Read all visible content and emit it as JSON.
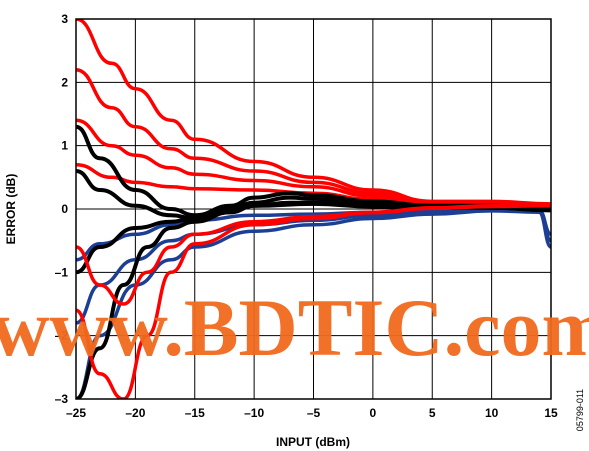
{
  "watermark": "www.BDTIC.com",
  "figure_id": "05799-011",
  "chart_data": {
    "type": "line",
    "title": "",
    "xlabel": "INPUT (dBm)",
    "ylabel": "ERROR (dB)",
    "xlim": [
      -25,
      15
    ],
    "ylim": [
      -3,
      3
    ],
    "xticks": [
      -25,
      -20,
      -15,
      -10,
      -5,
      0,
      5,
      10,
      15
    ],
    "yticks": [
      -3,
      -2,
      -1,
      0,
      1,
      2,
      3
    ],
    "xtick_labels": [
      "–25",
      "–20",
      "–15",
      "–10",
      "–5",
      "0",
      "5",
      "10",
      "15"
    ],
    "ytick_labels": [
      "–3",
      "–2",
      "–1",
      "0",
      "1",
      "2",
      "3"
    ],
    "grid": true,
    "legend": "none",
    "series": [
      {
        "color": "#ff0000",
        "group": "upper",
        "x": [
          -25,
          -22,
          -20,
          -17,
          -15,
          -10,
          -5,
          0,
          5,
          10,
          15
        ],
        "y": [
          3.0,
          2.3,
          1.9,
          1.4,
          1.1,
          0.75,
          0.5,
          0.3,
          0.12,
          0.12,
          0.08
        ]
      },
      {
        "color": "#ff0000",
        "group": "upper",
        "x": [
          -25,
          -22,
          -20,
          -17,
          -15,
          -10,
          -5,
          0,
          5,
          10,
          15
        ],
        "y": [
          2.2,
          1.6,
          1.3,
          0.95,
          0.8,
          0.6,
          0.42,
          0.25,
          0.1,
          0.1,
          0.07
        ]
      },
      {
        "color": "#ff0000",
        "group": "upper",
        "x": [
          -25,
          -22,
          -20,
          -17,
          -15,
          -10,
          -5,
          0,
          5,
          10,
          15
        ],
        "y": [
          1.4,
          1.0,
          0.85,
          0.65,
          0.55,
          0.45,
          0.35,
          0.2,
          0.09,
          0.09,
          0.06
        ]
      },
      {
        "color": "#ff0000",
        "group": "upper",
        "x": [
          -25,
          -22,
          -20,
          -17,
          -15,
          -10,
          -5,
          0,
          5,
          10,
          15
        ],
        "y": [
          0.7,
          0.5,
          0.42,
          0.35,
          0.32,
          0.3,
          0.25,
          0.15,
          0.07,
          0.08,
          0.05
        ]
      },
      {
        "color": "#ff0000",
        "group": "lower",
        "x": [
          -25,
          -23,
          -21,
          -19,
          -17,
          -15,
          -10,
          -5,
          0,
          5,
          10,
          15
        ],
        "y": [
          -0.6,
          -1.2,
          -1.5,
          -1.0,
          -0.6,
          -0.4,
          -0.2,
          -0.12,
          -0.05,
          0.02,
          0.05,
          0.05
        ]
      },
      {
        "color": "#ff0000",
        "group": "lower",
        "x": [
          -25,
          -23,
          -21,
          -19,
          -17,
          -15,
          -10,
          -5,
          0,
          5,
          10,
          15
        ],
        "y": [
          -1.6,
          -2.6,
          -3.0,
          -2.0,
          -1.0,
          -0.55,
          -0.25,
          -0.15,
          -0.06,
          0.01,
          0.04,
          0.05
        ]
      },
      {
        "color": "#1c3f94",
        "group": "lower",
        "x": [
          -25,
          -23,
          -20,
          -17,
          -15,
          -10,
          -5,
          0,
          5,
          10,
          14,
          15
        ],
        "y": [
          -3.0,
          -2.0,
          -1.2,
          -0.8,
          -0.6,
          -0.35,
          -0.25,
          -0.15,
          -0.08,
          -0.03,
          -0.05,
          -0.6
        ]
      },
      {
        "color": "#1c3f94",
        "group": "lower",
        "x": [
          -25,
          -23,
          -20,
          -17,
          -15,
          -10,
          -5,
          0,
          5,
          10,
          14,
          15
        ],
        "y": [
          -1.8,
          -1.2,
          -0.8,
          -0.5,
          -0.4,
          -0.25,
          -0.18,
          -0.1,
          -0.05,
          -0.02,
          -0.04,
          -0.5
        ]
      },
      {
        "color": "#1c3f94",
        "group": "lower",
        "x": [
          -25,
          -23,
          -20,
          -17,
          -15,
          -10,
          -5,
          0,
          5,
          10,
          14,
          15
        ],
        "y": [
          -0.8,
          -0.55,
          -0.4,
          -0.25,
          -0.18,
          -0.1,
          -0.08,
          -0.05,
          -0.02,
          0.0,
          -0.02,
          -0.4
        ]
      },
      {
        "color": "#000000",
        "group": "mid",
        "x": [
          -25,
          -23,
          -20,
          -17,
          -15,
          -12,
          -10,
          -7,
          -5,
          0,
          5,
          10,
          15
        ],
        "y": [
          1.3,
          0.8,
          0.3,
          0.0,
          -0.1,
          0.05,
          0.18,
          0.25,
          0.22,
          0.12,
          0.05,
          0.05,
          0.02
        ]
      },
      {
        "color": "#000000",
        "group": "mid",
        "x": [
          -25,
          -23,
          -20,
          -17,
          -15,
          -12,
          -10,
          -7,
          -5,
          0,
          5,
          10,
          15
        ],
        "y": [
          0.6,
          0.3,
          0.05,
          -0.1,
          -0.15,
          0.0,
          0.1,
          0.18,
          0.16,
          0.08,
          0.03,
          0.03,
          0.0
        ]
      },
      {
        "color": "#000000",
        "group": "mid",
        "x": [
          -25,
          -23,
          -20,
          -17,
          -15,
          -12,
          -10,
          -7,
          -5,
          0,
          5,
          10,
          15
        ],
        "y": [
          -1.0,
          -0.6,
          -0.3,
          -0.2,
          -0.15,
          -0.05,
          0.05,
          0.1,
          0.1,
          0.05,
          0.02,
          0.02,
          -0.02
        ]
      },
      {
        "color": "#000000",
        "group": "mid",
        "x": [
          -25,
          -23,
          -21,
          -19,
          -17,
          -15,
          -12,
          -10,
          -5,
          0,
          5,
          10,
          15
        ],
        "y": [
          -3.0,
          -2.2,
          -1.2,
          -0.6,
          -0.3,
          -0.2,
          -0.05,
          0.05,
          0.08,
          0.04,
          0.02,
          0.02,
          -0.02
        ]
      }
    ]
  }
}
